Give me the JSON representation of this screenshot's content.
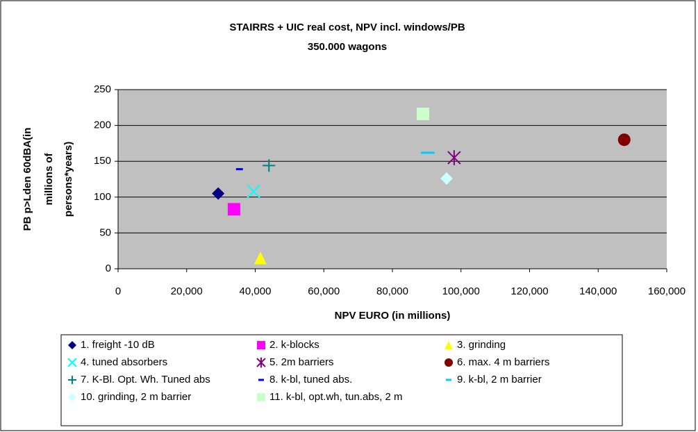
{
  "chart_data": {
    "type": "scatter",
    "title": [
      "STAIRRS + UIC real cost,  NPV incl. windows/PB",
      "350.000 wagons"
    ],
    "x_label": "NPV EURO (in millions)",
    "y_label": [
      "PB p>Lden 60dBA(in",
      "millions of",
      "persons*years)"
    ],
    "xlim": [
      0,
      160000
    ],
    "xticks": [
      0,
      {
        "value": 20000,
        "label": "20,000"
      },
      {
        "value": 40000,
        "label": "40,000"
      },
      {
        "value": 60000,
        "label": "60,000"
      },
      {
        "value": 80000,
        "label": "80,000"
      },
      {
        "value": 100000,
        "label": "100,000"
      },
      {
        "value": 120000,
        "label": "120,000"
      },
      {
        "value": 140000,
        "label": "140,000"
      },
      {
        "value": 160000,
        "label": "160,000"
      }
    ],
    "ylim": [
      0,
      250
    ],
    "yticks": [
      0,
      50,
      100,
      150,
      200,
      250
    ],
    "grid": true,
    "legend": "bottom",
    "series": [
      {
        "name": "1. freight -10 dB",
        "color": "#000080",
        "marker": "diamond",
        "x": [
          29200
        ],
        "values": [
          105
        ]
      },
      {
        "name": "2. k-blocks",
        "color": "#ff00ff",
        "marker": "square",
        "x": [
          33800
        ],
        "values": [
          83
        ]
      },
      {
        "name": "3. grinding",
        "color": "#ffff00",
        "marker": "triangle",
        "x": [
          41500
        ],
        "values": [
          15
        ]
      },
      {
        "name": "4. tuned absorbers",
        "color": "#00ffff",
        "marker": "x",
        "x": [
          39500
        ],
        "values": [
          108
        ]
      },
      {
        "name": "5. 2m barriers",
        "color": "#800080",
        "marker": "star",
        "x": [
          98000
        ],
        "values": [
          155
        ]
      },
      {
        "name": "6. max. 4 m barriers",
        "color": "#800000",
        "marker": "circle",
        "x": [
          147600
        ],
        "values": [
          180
        ]
      },
      {
        "name": "7. K-Bl. Opt. Wh. Tuned abs",
        "color": "#008080",
        "marker": "plus",
        "x": [
          44000
        ],
        "values": [
          144
        ]
      },
      {
        "name": "8. k-bl, tuned abs.",
        "color": "#0000ff",
        "marker": "dash",
        "x": [
          35400
        ],
        "values": [
          139
        ]
      },
      {
        "name": "9. k-bl, 2 m barrier",
        "color": "#00ccff",
        "marker": "dash",
        "x": [
          90300
        ],
        "values": [
          162
        ]
      },
      {
        "name": "10. grinding, 2 m barrier",
        "color": "#ccffff",
        "marker": "diamond",
        "x": [
          95800
        ],
        "values": [
          126
        ]
      },
      {
        "name": "11. k-bl, opt.wh, tun.abs, 2 m",
        "color": "#ccffcc",
        "marker": "square",
        "x": [
          88900
        ],
        "values": [
          216
        ]
      }
    ]
  }
}
